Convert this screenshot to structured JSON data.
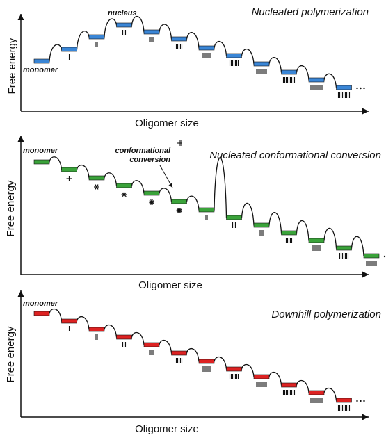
{
  "panels": [
    {
      "id": "nucleated",
      "title": "Nucleated polymerization",
      "y_axis_label": "Free energy",
      "x_axis_label": "Oligomer size",
      "state_color": "#3a86d6",
      "annotations": {
        "first_state": "monomer",
        "peak_state": "nucleus"
      }
    },
    {
      "id": "conformational",
      "title": "Nucleated conformational conversion",
      "y_axis_label": "Free energy",
      "x_axis_label": "Oligomer size",
      "state_color": "#3aa33a",
      "annotations": {
        "first_state": "monomer",
        "conversion_line1": "conformational",
        "conversion_line2": "conversion"
      }
    },
    {
      "id": "downhill",
      "title": "Downhill polymerization",
      "y_axis_label": "Free energy",
      "x_axis_label": "Oligomer size",
      "state_color": "#dd2222",
      "annotations": {
        "first_state": "monomer"
      }
    }
  ]
}
